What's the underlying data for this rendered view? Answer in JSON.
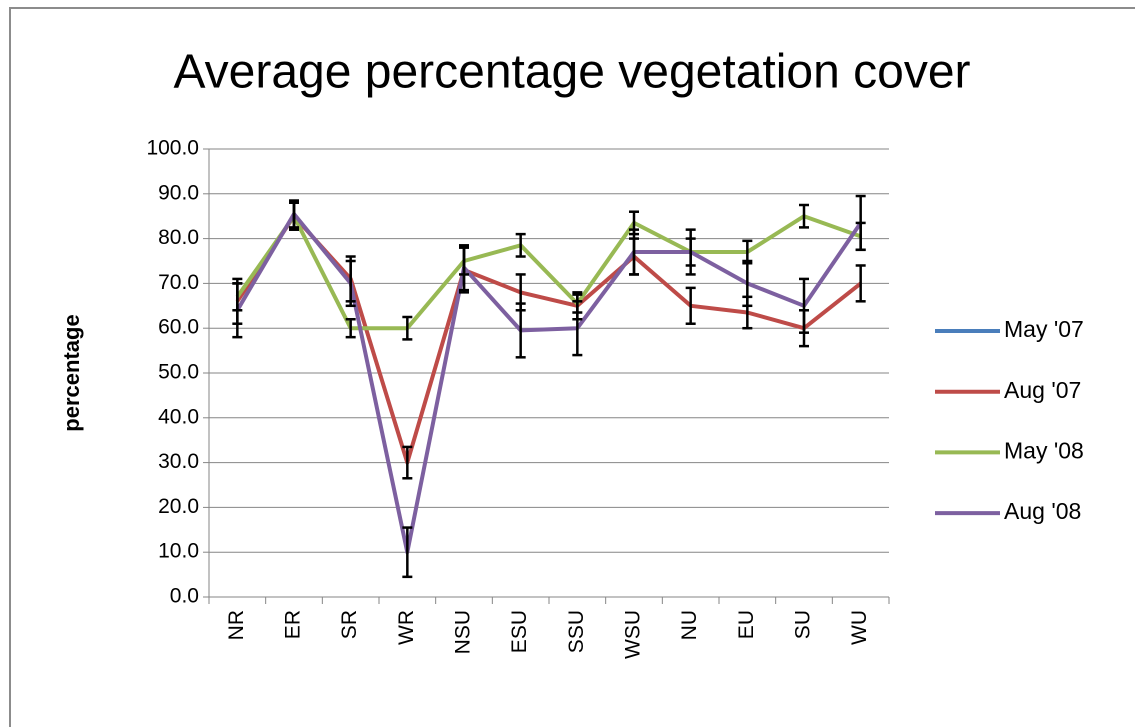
{
  "chart_data": {
    "type": "line",
    "title": "Average percentage vegetation cover",
    "ylabel": "percentage",
    "categories": [
      "NR",
      "ER",
      "SR",
      "WR",
      "NSU",
      "ESU",
      "SSU",
      "WSU",
      "NU",
      "EU",
      "SU",
      "WU"
    ],
    "ylim": [
      0,
      100
    ],
    "yticks": [
      {
        "value": 0,
        "label": "0.0"
      },
      {
        "value": 10,
        "label": "10.0"
      },
      {
        "value": 20,
        "label": "20.0"
      },
      {
        "value": 30,
        "label": "30.0"
      },
      {
        "value": 40,
        "label": "40.0"
      },
      {
        "value": 50,
        "label": "50.0"
      },
      {
        "value": 60,
        "label": "60.0"
      },
      {
        "value": 70,
        "label": "70.0"
      },
      {
        "value": 80,
        "label": "80.0"
      },
      {
        "value": 90,
        "label": "90.0"
      },
      {
        "value": 100,
        "label": "100.0"
      }
    ],
    "grid": true,
    "legend": "right",
    "error_color": "#000000",
    "series": [
      {
        "name": "May '07",
        "color": "#4a7ebb",
        "values": [
          null,
          null,
          null,
          null,
          null,
          null,
          null,
          null,
          null,
          null,
          null,
          null
        ],
        "errors": [
          null,
          null,
          null,
          null,
          null,
          null,
          null,
          null,
          null,
          null,
          null,
          null
        ]
      },
      {
        "name": "Aug '07",
        "color": "#be4b48",
        "values": [
          66,
          85,
          71,
          30,
          73,
          68,
          65,
          76,
          65,
          63.5,
          60,
          70
        ],
        "errors": [
          5,
          3,
          5,
          3.5,
          5,
          4,
          3,
          4,
          4,
          3.5,
          4,
          4
        ]
      },
      {
        "name": "May '08",
        "color": "#98b954",
        "values": [
          67,
          85,
          60,
          60,
          75,
          78.5,
          65.5,
          83.5,
          77,
          77,
          85,
          80.5
        ],
        "errors": [
          3,
          3,
          2,
          2.5,
          3,
          2.5,
          2,
          2.5,
          3,
          2.5,
          2.5,
          3
        ]
      },
      {
        "name": "Aug '08",
        "color": "#7d60a0",
        "values": [
          64,
          85.5,
          70,
          10,
          73.5,
          59.5,
          60,
          77,
          77,
          70,
          65,
          83.5
        ],
        "errors": [
          6,
          3,
          5,
          5.5,
          5,
          6,
          6,
          5,
          5,
          5,
          6,
          6
        ]
      }
    ]
  }
}
